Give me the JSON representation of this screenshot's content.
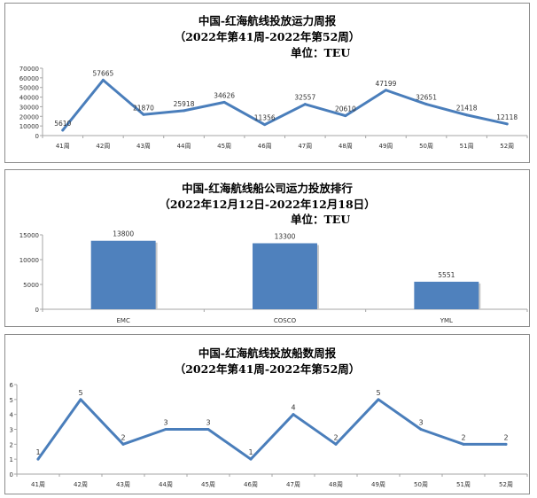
{
  "charts": {
    "weekly_capacity": {
      "title_line1": "中国-红海航线投放运力周报",
      "title_line2": "（2022年第41周-2022年第52周）",
      "unit": "单位：TEU"
    },
    "company_ranking": {
      "title_line1": "中国-红海航线船公司运力投放排行",
      "title_line2": "（2022年12月12日-2022年12月18日）",
      "unit": "单位：TEU"
    },
    "weekly_ships": {
      "title_line1": "中国-红海航线投放船数周报",
      "title_line2": "（2022年第41周-2022年第52周）"
    }
  },
  "colors": {
    "series": "#4a7ebb",
    "bar": "#4f81bd",
    "axis": "#a6a6a6"
  },
  "chart_data": [
    {
      "type": "line",
      "title": "中国-红海航线投放运力周报",
      "subtitle": "（2022年第41周-2022年第52周）",
      "ylabel": "单位：TEU",
      "categories": [
        "41周",
        "42周",
        "43周",
        "44周",
        "45周",
        "46周",
        "47周",
        "48周",
        "49周",
        "50周",
        "51周",
        "52周"
      ],
      "values": [
        5610,
        57665,
        21870,
        25918,
        34626,
        11356,
        32557,
        20610,
        47199,
        32651,
        21418,
        12118
      ],
      "ylim": [
        0,
        70000
      ],
      "yticks": [
        0,
        10000,
        20000,
        30000,
        40000,
        50000,
        60000,
        70000
      ],
      "grid": false
    },
    {
      "type": "bar",
      "title": "中国-红海航线船公司运力投放排行",
      "subtitle": "（2022年12月12日-2022年12月18日）",
      "ylabel": "单位：TEU",
      "categories": [
        "EMC",
        "COSCO",
        "YML"
      ],
      "values": [
        13800,
        13300,
        5551
      ],
      "ylim": [
        0,
        15000
      ],
      "yticks": [
        0,
        5000,
        10000,
        15000
      ],
      "grid": false
    },
    {
      "type": "line",
      "title": "中国-红海航线投放船数周报",
      "subtitle": "（2022年第41周-2022年第52周）",
      "categories": [
        "41周",
        "42周",
        "43周",
        "44周",
        "45周",
        "46周",
        "47周",
        "48周",
        "49周",
        "50周",
        "51周",
        "52周"
      ],
      "values": [
        1,
        5,
        2,
        3,
        3,
        1,
        4,
        2,
        5,
        3,
        2,
        2
      ],
      "ylim": [
        0,
        6
      ],
      "yticks": [
        0,
        1,
        2,
        3,
        4,
        5,
        6
      ],
      "grid": false
    }
  ]
}
